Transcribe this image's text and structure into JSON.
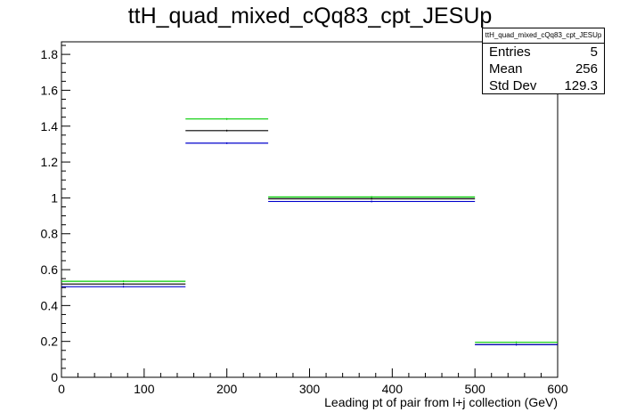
{
  "title": "ttH_quad_mixed_cQq83_cpt_JESUp",
  "stats": {
    "name": "ttH_quad_mixed_cQq83_cpt_JESUp",
    "rows": [
      {
        "label": "Entries",
        "value": "5"
      },
      {
        "label": "Mean",
        "value": "256"
      },
      {
        "label": "Std Dev",
        "value": "129.3"
      }
    ]
  },
  "chart_data": {
    "type": "bar",
    "title": "ttH_quad_mixed_cQq83_cpt_JESUp",
    "xlabel": "Leading pt of pair from l+j collection (GeV)",
    "ylabel": "",
    "xlim": [
      0,
      600
    ],
    "ylim": [
      0,
      1.87
    ],
    "x_ticks": [
      "0",
      "100",
      "200",
      "300",
      "400",
      "500",
      "600"
    ],
    "y_ticks": [
      "0",
      "0.2",
      "0.4",
      "0.6",
      "0.8",
      "1",
      "1.2",
      "1.4",
      "1.6",
      "1.8"
    ],
    "bin_edges": [
      0,
      150,
      250,
      500,
      600
    ],
    "series": [
      {
        "color": "#00cc00",
        "values": [
          0.535,
          1.44,
          1.005,
          0.195
        ]
      },
      {
        "color": "#000000",
        "values": [
          0.52,
          1.375,
          0.995,
          0.182
        ]
      },
      {
        "color": "#0000cc",
        "values": [
          0.505,
          1.305,
          0.98,
          0.182
        ]
      }
    ],
    "grid": false,
    "legend": "top-right stats box"
  }
}
